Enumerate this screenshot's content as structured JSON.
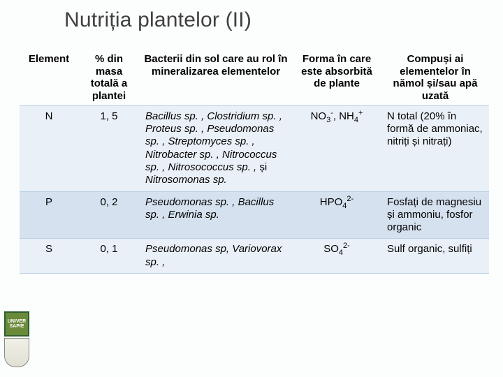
{
  "title": "Nutriția plantelor (II)",
  "columns": [
    "Element",
    "% din masa totală a plantei",
    "Bacterii din sol care au rol în mineralizarea elementelor",
    "Forma în care este absorbită de plante",
    "Compuși ai elementelor în nămol și/sau apă uzată"
  ],
  "rows": [
    {
      "element": "N",
      "pct": "1, 5",
      "bacteria_html": "<em>Bacillus sp. , Clostridium sp. , Proteus sp. , Pseudomonas sp. , Streptomyces sp. , Nitrobacter sp. , Nitrococcus sp. , Nitrosococcus sp. ,</em> și <em>Nitrosomonas sp.</em>",
      "form_html": "NO<sub>3</sub><sup>-</sup>, NH<sub>4</sub><sup>+</sup>",
      "compounds": "N total (20% în formă de ammoniac, nitriți și nitrați)"
    },
    {
      "element": "P",
      "pct": "0, 2",
      "bacteria_html": "<em>Pseudomonas sp. , Bacillus sp. , Erwinia sp.</em>",
      "form_html": "HPO<sub>4</sub><sup>2-</sup>",
      "compounds": "Fosfați de magnesiu și ammoniu, fosfor organic"
    },
    {
      "element": "S",
      "pct": "0, 1",
      "bacteria_html": "<em>Pseudomonas sp, Variovorax sp. ,</em>",
      "form_html": "SO<sub>4</sub><sup>2-</sup>",
      "compounds": "Sulf organic, sulfiți"
    }
  ],
  "logo_text": "UNIVER\nSAPIE"
}
